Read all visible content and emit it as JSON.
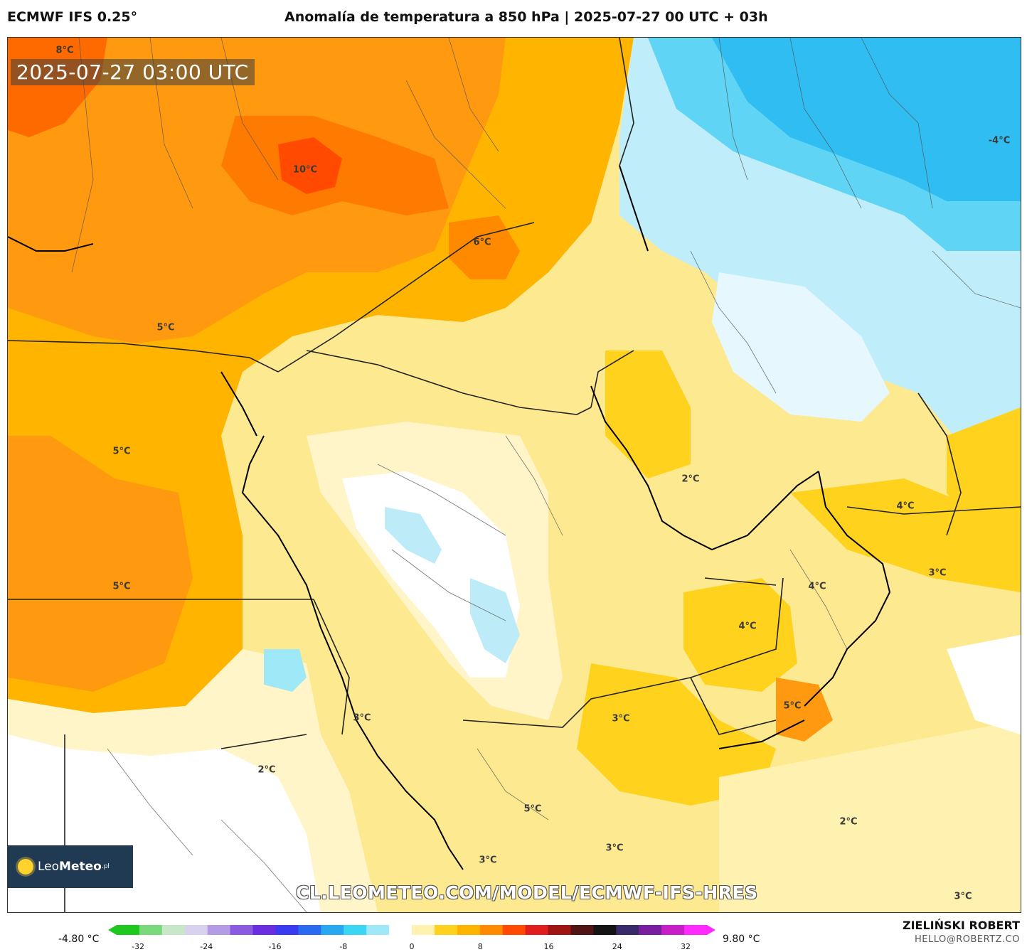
{
  "header": {
    "model": "ECMWF IFS 0.25°",
    "title": "Anomalía de temperatura a 850 hPa | 2025-07-27 00 UTC + 03h"
  },
  "map": {
    "timestamp": "2025-07-27 03:00 UTC",
    "watermark": "CL.LEOMETEO.COM/MODEL/ECMWF-IFS-HRES",
    "logo": {
      "brand_light": "Leo",
      "brand_bold": "Meteo",
      "suffix": ".pl"
    },
    "labels": [
      "8°C",
      "10°C",
      "6°C",
      "5°C",
      "5°C",
      "5°C",
      "-4°C",
      "2°C",
      "4°C",
      "3°C",
      "4°C",
      "4°C",
      "5°C",
      "3°C",
      "3°C",
      "2°C",
      "5°C",
      "3°C",
      "3°C",
      "2°C",
      "3°C"
    ]
  },
  "colorbar": {
    "min_label": "-4.80 °C",
    "max_label": "9.80 °C",
    "ticks": [
      "-32",
      "-24",
      "-16",
      "-8",
      "0",
      "8",
      "16",
      "24",
      "32"
    ],
    "colors": [
      "#1ec81e",
      "#7ad97a",
      "#c8e6c8",
      "#d9d2ee",
      "#b49be6",
      "#8a5ae0",
      "#6a2ee0",
      "#3a3af0",
      "#2a6af0",
      "#28a8f0",
      "#3cd6f5",
      "#9ee8f8",
      "#ffffff",
      "#fff2b0",
      "#ffd21e",
      "#ffb400",
      "#ff8a00",
      "#ff4a00",
      "#e01e1e",
      "#a01414",
      "#501414",
      "#141414",
      "#3a2a6a",
      "#7a1ea0",
      "#c81ec8",
      "#ff2aff"
    ]
  },
  "credits": {
    "author": "ZIELIŃSKI ROBERT",
    "email": "HELLO@ROBERTZ.CO"
  }
}
